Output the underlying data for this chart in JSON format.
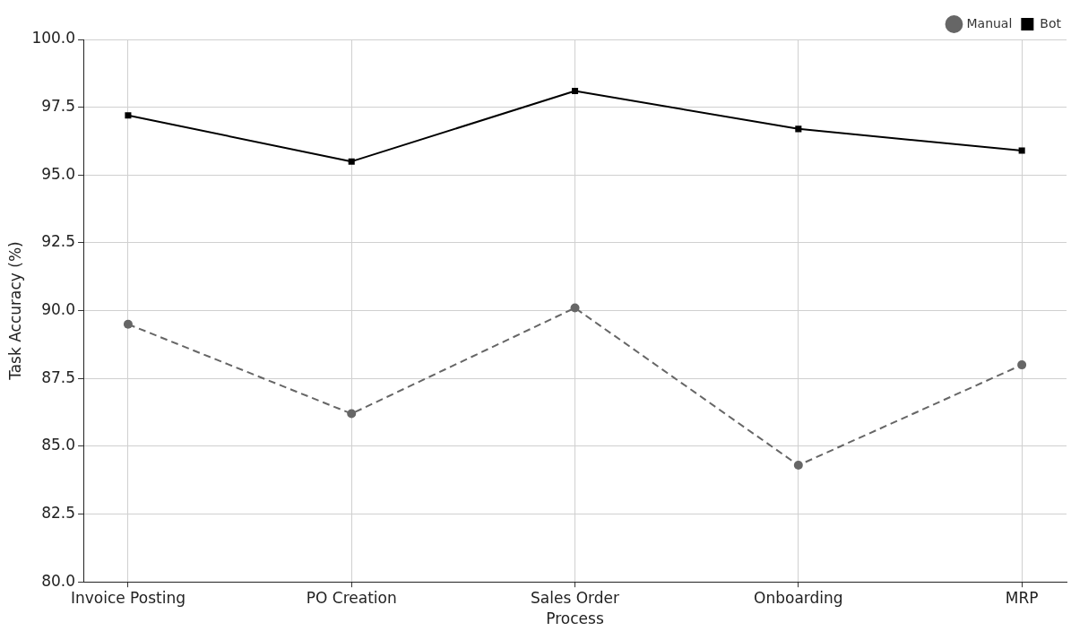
{
  "chart_data": {
    "type": "line",
    "xlabel": "Process",
    "ylabel": "Task Accuracy (%)",
    "categories": [
      "Invoice Posting",
      "PO Creation",
      "Sales Order",
      "Onboarding",
      "MRP"
    ],
    "series": [
      {
        "name": "Manual",
        "color": "#666666",
        "values": [
          89.5,
          86.2,
          90.1,
          84.3,
          88.0
        ],
        "marker": "circle",
        "line_style": "dashed"
      },
      {
        "name": "Bot",
        "color": "#000000",
        "values": [
          97.2,
          95.5,
          98.1,
          96.7,
          95.9
        ],
        "marker": "square",
        "line_style": "solid"
      }
    ],
    "ylim": [
      80,
      100
    ],
    "yticks": [
      {
        "value": 80,
        "label": "80.0"
      },
      {
        "value": 82.5,
        "label": "82.5"
      },
      {
        "value": 85,
        "label": "85.0"
      },
      {
        "value": 87.5,
        "label": "87.5"
      },
      {
        "value": 90,
        "label": "90.0"
      },
      {
        "value": 92.5,
        "label": "92.5"
      },
      {
        "value": 95,
        "label": "95.0"
      },
      {
        "value": 97.5,
        "label": "97.5"
      },
      {
        "value": 100,
        "label": "100.0"
      }
    ],
    "grid": true,
    "legend": "top right"
  }
}
